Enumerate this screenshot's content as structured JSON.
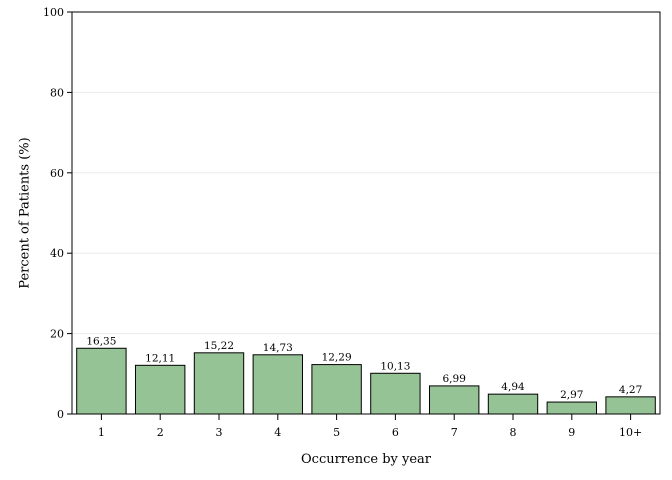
{
  "chart_data": {
    "type": "bar",
    "categories": [
      "1",
      "2",
      "3",
      "4",
      "5",
      "6",
      "7",
      "8",
      "9",
      "10+"
    ],
    "values": [
      16.35,
      12.11,
      15.22,
      14.73,
      12.29,
      10.13,
      6.99,
      4.94,
      2.97,
      4.27
    ],
    "value_labels": [
      "16,35",
      "12,11",
      "15,22",
      "14,73",
      "12,29",
      "10,13",
      "6,99",
      "4,94",
      "2,97",
      "4,27"
    ],
    "xlabel": "Occurrence by year",
    "ylabel": "Percent of Patients (%)",
    "ylim": [
      0,
      100
    ],
    "yticks": [
      "0",
      "20",
      "40",
      "60",
      "80",
      "100"
    ],
    "grid": true,
    "bar_color": "#96c396",
    "bar_edge_color": "#000000",
    "grid_color": "#ececec"
  }
}
